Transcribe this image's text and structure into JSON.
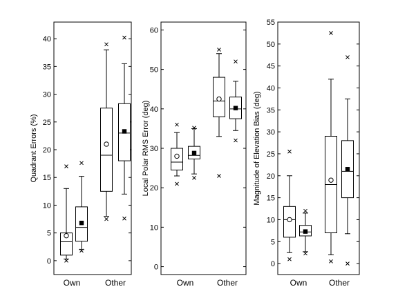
{
  "chart_data": [
    {
      "type": "box",
      "ylabel": "Quadrant Errors (%)",
      "ylim": [
        -2.5,
        43
      ],
      "yticks": [
        0,
        5,
        10,
        15,
        20,
        25,
        30,
        35,
        40
      ],
      "categories": [
        "Own",
        "Other"
      ],
      "boxes": [
        {
          "category": "Own",
          "marker": "open-circle",
          "q1": 1,
          "median": 3.4,
          "q3": 5,
          "whisker_low": 0.3,
          "whisker_high": 13,
          "min": 0,
          "max": 17,
          "mean": 4.5
        },
        {
          "category": "Own",
          "marker": "filled-square",
          "q1": 3.5,
          "median": 6,
          "q3": 9.7,
          "whisker_low": 2,
          "whisker_high": 15.2,
          "min": 1.8,
          "max": 17.6,
          "mean": 6.8
        },
        {
          "category": "Other",
          "marker": "open-circle",
          "q1": 12.5,
          "median": 19,
          "q3": 27.5,
          "whisker_low": 8,
          "whisker_high": 38,
          "min": 7.5,
          "max": 39,
          "mean": 21
        },
        {
          "category": "Other",
          "marker": "filled-square",
          "q1": 18,
          "median": 23,
          "q3": 28.3,
          "whisker_low": 12,
          "whisker_high": 35.5,
          "min": 7.6,
          "max": 40.2,
          "mean": 23.3
        }
      ]
    },
    {
      "type": "box",
      "ylabel": "Local Polar RMS Error (deg)",
      "ylim": [
        -2,
        62
      ],
      "yticks": [
        0,
        10,
        20,
        30,
        40,
        50,
        60
      ],
      "categories": [
        "Own",
        "Other"
      ],
      "boxes": [
        {
          "category": "Own",
          "marker": "open-circle",
          "q1": 24.5,
          "median": 26.5,
          "q3": 30,
          "whisker_low": 23,
          "whisker_high": 34,
          "min": 21,
          "max": 36,
          "mean": 28
        },
        {
          "category": "Own",
          "marker": "filled-square",
          "q1": 27.3,
          "median": 28.2,
          "q3": 30.5,
          "whisker_low": 23.5,
          "whisker_high": 35,
          "min": 22.5,
          "max": 35.2,
          "mean": 28.8
        },
        {
          "category": "Other",
          "marker": "open-circle",
          "q1": 38,
          "median": 42,
          "q3": 48,
          "whisker_low": 33,
          "whisker_high": 54,
          "min": 23,
          "max": 55,
          "mean": 42.5
        },
        {
          "category": "Other",
          "marker": "filled-square",
          "q1": 37.5,
          "median": 40,
          "q3": 43,
          "whisker_low": 34.5,
          "whisker_high": 47,
          "min": 32,
          "max": 52,
          "mean": 40.2
        }
      ]
    },
    {
      "type": "box",
      "ylabel": "Magnitude of Elevation Bias (deg)",
      "ylim": [
        -2.5,
        55
      ],
      "yticks": [
        0,
        5,
        10,
        15,
        20,
        25,
        30,
        35,
        40,
        45,
        50,
        55
      ],
      "categories": [
        "Own",
        "Other"
      ],
      "boxes": [
        {
          "category": "Own",
          "marker": "open-circle",
          "q1": 6,
          "median": 10,
          "q3": 13,
          "whisker_low": 2.5,
          "whisker_high": 20,
          "min": 1,
          "max": 25.5,
          "mean": 10
        },
        {
          "category": "Own",
          "marker": "filled-square",
          "q1": 6.3,
          "median": 7.2,
          "q3": 8.7,
          "whisker_low": 2.7,
          "whisker_high": 11.5,
          "min": 2.3,
          "max": 12,
          "mean": 7.3
        },
        {
          "category": "Other",
          "marker": "open-circle",
          "q1": 7,
          "median": 18,
          "q3": 29,
          "whisker_low": 2,
          "whisker_high": 42,
          "min": 0.5,
          "max": 52.5,
          "mean": 19
        },
        {
          "category": "Other",
          "marker": "filled-square",
          "q1": 15,
          "median": 21,
          "q3": 28,
          "whisker_low": 6.8,
          "whisker_high": 37.5,
          "min": 0,
          "max": 47,
          "mean": 21.5
        }
      ]
    }
  ]
}
